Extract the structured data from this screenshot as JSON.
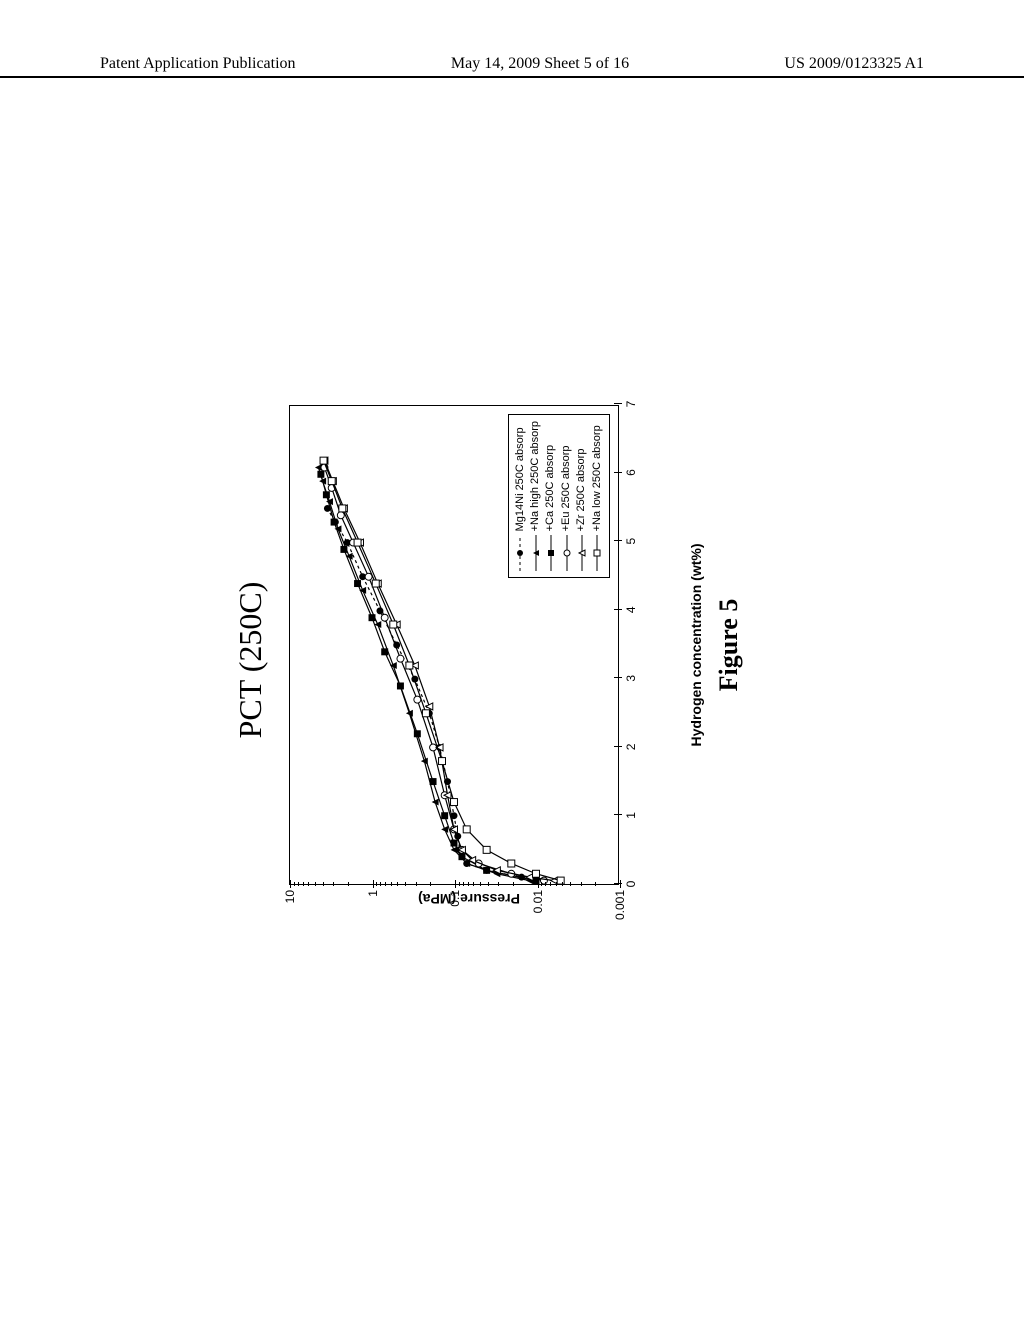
{
  "header": {
    "left": "Patent Application Publication",
    "center": "May 14, 2009  Sheet 5 of 16",
    "right": "US 2009/0123325 A1"
  },
  "figure": {
    "title": "PCT (250C)",
    "figure_label": "Figure 5",
    "xlabel": "Hydrogen concentration (wt%)",
    "ylabel": "Pressure (MPa)",
    "xlim": [
      0,
      7
    ],
    "xticks": [
      0,
      1,
      2,
      3,
      4,
      5,
      6,
      7
    ],
    "ylim_log": [
      -3,
      1
    ],
    "ytick_labels": [
      "0.001",
      "0.01",
      "0.1",
      "1",
      "10"
    ],
    "ytick_exps": [
      -3,
      -2,
      -1,
      0,
      1
    ],
    "border_color": "#000000",
    "background_color": "#ffffff",
    "series": [
      {
        "label": "Mg14Ni 250C absorp",
        "marker": "filled-circle",
        "dash": "3,3",
        "data": [
          [
            0.05,
            0.01
          ],
          [
            0.1,
            0.015
          ],
          [
            0.2,
            0.04
          ],
          [
            0.3,
            0.07
          ],
          [
            0.4,
            0.08
          ],
          [
            0.5,
            0.085
          ],
          [
            0.7,
            0.09
          ],
          [
            1.0,
            0.1
          ],
          [
            1.5,
            0.12
          ],
          [
            2.0,
            0.15
          ],
          [
            2.5,
            0.2
          ],
          [
            3.0,
            0.3
          ],
          [
            3.5,
            0.5
          ],
          [
            4.0,
            0.8
          ],
          [
            4.5,
            1.3
          ],
          [
            5.0,
            2.0
          ],
          [
            5.3,
            2.8
          ],
          [
            5.5,
            3.5
          ]
        ]
      },
      {
        "label": "+Na high 250C absorp",
        "marker": "filled-triangle",
        "dash": "none",
        "data": [
          [
            0.05,
            0.012
          ],
          [
            0.15,
            0.03
          ],
          [
            0.3,
            0.07
          ],
          [
            0.5,
            0.1
          ],
          [
            0.8,
            0.13
          ],
          [
            1.2,
            0.17
          ],
          [
            1.8,
            0.23
          ],
          [
            2.5,
            0.35
          ],
          [
            3.2,
            0.55
          ],
          [
            3.8,
            0.85
          ],
          [
            4.3,
            1.3
          ],
          [
            4.8,
            1.9
          ],
          [
            5.2,
            2.6
          ],
          [
            5.6,
            3.3
          ],
          [
            5.9,
            4.0
          ],
          [
            6.1,
            4.5
          ]
        ]
      },
      {
        "label": "+Ca 250C absorp",
        "marker": "filled-square",
        "dash": "none",
        "data": [
          [
            0.05,
            0.01
          ],
          [
            0.2,
            0.04
          ],
          [
            0.4,
            0.08
          ],
          [
            0.6,
            0.1
          ],
          [
            1.0,
            0.13
          ],
          [
            1.5,
            0.18
          ],
          [
            2.2,
            0.28
          ],
          [
            2.9,
            0.45
          ],
          [
            3.4,
            0.7
          ],
          [
            3.9,
            1.0
          ],
          [
            4.4,
            1.5
          ],
          [
            4.9,
            2.2
          ],
          [
            5.3,
            2.9
          ],
          [
            5.7,
            3.6
          ],
          [
            6.0,
            4.2
          ]
        ]
      },
      {
        "label": "+Eu 250C absorp",
        "marker": "open-circle",
        "dash": "none",
        "data": [
          [
            0.05,
            0.008
          ],
          [
            0.15,
            0.02
          ],
          [
            0.3,
            0.05
          ],
          [
            0.5,
            0.08
          ],
          [
            0.8,
            0.1
          ],
          [
            1.3,
            0.13
          ],
          [
            2.0,
            0.18
          ],
          [
            2.7,
            0.28
          ],
          [
            3.3,
            0.45
          ],
          [
            3.9,
            0.7
          ],
          [
            4.5,
            1.1
          ],
          [
            5.0,
            1.7
          ],
          [
            5.4,
            2.4
          ],
          [
            5.8,
            3.1
          ],
          [
            6.1,
            3.8
          ]
        ]
      },
      {
        "label": "+Zr 250C absorp",
        "marker": "open-triangle",
        "dash": "none",
        "data": [
          [
            0.05,
            0.006
          ],
          [
            0.1,
            0.012
          ],
          [
            0.2,
            0.03
          ],
          [
            0.35,
            0.06
          ],
          [
            0.5,
            0.08
          ],
          [
            0.8,
            0.1
          ],
          [
            1.3,
            0.12
          ],
          [
            2.0,
            0.15
          ],
          [
            2.6,
            0.2
          ],
          [
            3.2,
            0.3
          ],
          [
            3.8,
            0.5
          ],
          [
            4.4,
            0.85
          ],
          [
            5.0,
            1.4
          ],
          [
            5.5,
            2.2
          ],
          [
            5.9,
            3.0
          ],
          [
            6.2,
            3.8
          ]
        ]
      },
      {
        "label": "+Na low 250C absorp",
        "marker": "open-square",
        "dash": "none",
        "data": [
          [
            0.05,
            0.005
          ],
          [
            0.15,
            0.01
          ],
          [
            0.3,
            0.02
          ],
          [
            0.5,
            0.04
          ],
          [
            0.8,
            0.07
          ],
          [
            1.2,
            0.1
          ],
          [
            1.8,
            0.14
          ],
          [
            2.5,
            0.22
          ],
          [
            3.2,
            0.35
          ],
          [
            3.8,
            0.55
          ],
          [
            4.4,
            0.9
          ],
          [
            5.0,
            1.5
          ],
          [
            5.5,
            2.3
          ],
          [
            5.9,
            3.1
          ],
          [
            6.2,
            3.9
          ]
        ]
      }
    ]
  }
}
